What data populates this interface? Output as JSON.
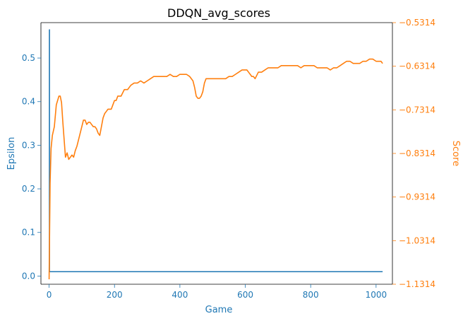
{
  "chart_data": {
    "type": "line",
    "title": "DDQN_avg_scores",
    "xlabel": "Game",
    "ylabel_left": "Epsilon",
    "ylabel_right": "Score",
    "xlim": [
      -25,
      1050
    ],
    "ylim_left": [
      -0.0188,
      0.5812
    ],
    "ylim_right": [
      -1.1314,
      -0.5314
    ],
    "x_ticks": [
      0,
      200,
      400,
      600,
      800,
      1000
    ],
    "y_left_ticks": [
      0.0,
      0.1,
      0.2,
      0.3,
      0.4,
      0.5
    ],
    "y_left_tick_labels": [
      "0.0",
      "0.1",
      "0.2",
      "0.3",
      "0.4",
      "0.5"
    ],
    "y_right_ticks": [
      -1.1314,
      -1.0314,
      -0.9314,
      -0.8314,
      -0.7314,
      -0.6314,
      -0.5314
    ],
    "y_right_tick_labels": [
      "−1.1314",
      "−1.0314",
      "−0.9314",
      "−0.8314",
      "−0.7314",
      "−0.6314",
      "−0.5314"
    ],
    "grid": false,
    "legend": "none",
    "colors": {
      "left_axis": "#1f77b4",
      "right_axis": "#ff7f0e",
      "frame": "#000000"
    },
    "series": [
      {
        "axis": "left",
        "color": "#1f77b4",
        "x": [
          0,
          1,
          1,
          1020
        ],
        "y": [
          0.565,
          0.565,
          0.01,
          0.01
        ]
      },
      {
        "axis": "right",
        "color": "#ff7f0e",
        "x": [
          0,
          3,
          6,
          10,
          16,
          22,
          26,
          30,
          34,
          38,
          42,
          46,
          50,
          55,
          60,
          65,
          70,
          75,
          80,
          85,
          90,
          95,
          100,
          105,
          110,
          115,
          120,
          125,
          130,
          135,
          140,
          145,
          150,
          155,
          160,
          165,
          170,
          175,
          180,
          185,
          190,
          195,
          200,
          205,
          210,
          220,
          230,
          240,
          250,
          260,
          270,
          280,
          290,
          300,
          310,
          320,
          330,
          340,
          350,
          360,
          370,
          380,
          390,
          400,
          410,
          420,
          430,
          440,
          445,
          450,
          455,
          460,
          465,
          470,
          475,
          480,
          490,
          500,
          510,
          520,
          530,
          540,
          550,
          560,
          570,
          580,
          590,
          600,
          605,
          610,
          615,
          620,
          625,
          630,
          640,
          650,
          660,
          670,
          680,
          690,
          700,
          710,
          720,
          730,
          740,
          750,
          760,
          770,
          780,
          790,
          800,
          810,
          820,
          830,
          840,
          850,
          860,
          870,
          880,
          890,
          900,
          910,
          920,
          930,
          940,
          950,
          960,
          970,
          980,
          990,
          1000,
          1010,
          1015,
          1020
        ],
        "y": [
          -1.12,
          -0.9,
          -0.82,
          -0.79,
          -0.77,
          -0.72,
          -0.71,
          -0.7,
          -0.7,
          -0.715,
          -0.76,
          -0.8,
          -0.84,
          -0.83,
          -0.845,
          -0.84,
          -0.835,
          -0.84,
          -0.825,
          -0.815,
          -0.8,
          -0.785,
          -0.77,
          -0.755,
          -0.755,
          -0.765,
          -0.76,
          -0.76,
          -0.765,
          -0.77,
          -0.77,
          -0.775,
          -0.785,
          -0.79,
          -0.77,
          -0.75,
          -0.74,
          -0.735,
          -0.73,
          -0.73,
          -0.73,
          -0.72,
          -0.71,
          -0.71,
          -0.7,
          -0.7,
          -0.685,
          -0.685,
          -0.675,
          -0.67,
          -0.67,
          -0.665,
          -0.67,
          -0.665,
          -0.66,
          -0.655,
          -0.655,
          -0.655,
          -0.655,
          -0.655,
          -0.65,
          -0.655,
          -0.655,
          -0.65,
          -0.65,
          -0.65,
          -0.655,
          -0.665,
          -0.68,
          -0.7,
          -0.705,
          -0.705,
          -0.7,
          -0.69,
          -0.67,
          -0.66,
          -0.66,
          -0.66,
          -0.66,
          -0.66,
          -0.66,
          -0.66,
          -0.655,
          -0.655,
          -0.65,
          -0.645,
          -0.64,
          -0.64,
          -0.64,
          -0.645,
          -0.65,
          -0.655,
          -0.655,
          -0.66,
          -0.645,
          -0.645,
          -0.64,
          -0.635,
          -0.635,
          -0.635,
          -0.635,
          -0.63,
          -0.63,
          -0.63,
          -0.63,
          -0.63,
          -0.63,
          -0.635,
          -0.63,
          -0.63,
          -0.63,
          -0.63,
          -0.635,
          -0.635,
          -0.635,
          -0.635,
          -0.64,
          -0.635,
          -0.635,
          -0.63,
          -0.625,
          -0.62,
          -0.62,
          -0.625,
          -0.625,
          -0.625,
          -0.62,
          -0.62,
          -0.615,
          -0.615,
          -0.62,
          -0.62,
          -0.62,
          -0.625
        ]
      }
    ]
  }
}
